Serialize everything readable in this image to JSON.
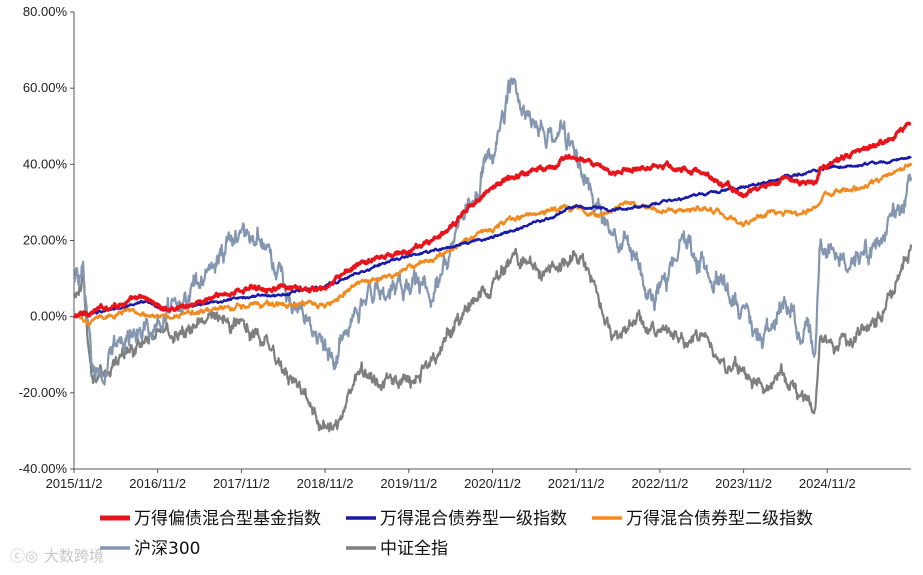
{
  "chart_data": {
    "type": "line",
    "title": "",
    "xlabel": "",
    "ylabel": "",
    "ylim": [
      -0.4,
      0.8
    ],
    "y_ticks": [
      "80.00%",
      "60.00%",
      "40.00%",
      "20.00%",
      "0.00%",
      "-20.00%",
      "-40.00%"
    ],
    "x_ticks": [
      "2015/11/2",
      "2016/11/2",
      "2017/11/2",
      "2018/11/2",
      "2019/11/2",
      "2020/11/2",
      "2021/11/2",
      "2022/11/2",
      "2023/11/2",
      "2024/11/2"
    ],
    "x_range": [
      2015.84,
      2025.84
    ],
    "grid": false,
    "legend_position": "bottom",
    "series": [
      {
        "name": "万得偏债混合型基金指数",
        "color": "#e8141b",
        "points": [
          [
            2015.84,
            0.0
          ],
          [
            2016.0,
            0.01
          ],
          [
            2016.3,
            0.03
          ],
          [
            2016.7,
            0.05
          ],
          [
            2016.9,
            0.02
          ],
          [
            2017.2,
            0.03
          ],
          [
            2017.5,
            0.05
          ],
          [
            2017.84,
            0.07
          ],
          [
            2018.1,
            0.08
          ],
          [
            2018.5,
            0.07
          ],
          [
            2018.84,
            0.07
          ],
          [
            2019.1,
            0.12
          ],
          [
            2019.4,
            0.15
          ],
          [
            2019.84,
            0.17
          ],
          [
            2020.1,
            0.2
          ],
          [
            2020.3,
            0.22
          ],
          [
            2020.6,
            0.3
          ],
          [
            2020.84,
            0.34
          ],
          [
            2021.1,
            0.37
          ],
          [
            2021.4,
            0.39
          ],
          [
            2021.84,
            0.42
          ],
          [
            2022.2,
            0.38
          ],
          [
            2022.5,
            0.39
          ],
          [
            2022.84,
            0.4
          ],
          [
            2023.3,
            0.38
          ],
          [
            2023.84,
            0.32
          ],
          [
            2024.3,
            0.36
          ],
          [
            2024.7,
            0.35
          ],
          [
            2024.75,
            0.39
          ],
          [
            2025.2,
            0.43
          ],
          [
            2025.5,
            0.46
          ],
          [
            2025.84,
            0.51
          ]
        ]
      },
      {
        "name": "万得混合债券型一级指数",
        "color": "#1a1aa8",
        "points": [
          [
            2015.84,
            0.0
          ],
          [
            2016.3,
            0.02
          ],
          [
            2016.7,
            0.04
          ],
          [
            2016.9,
            0.02
          ],
          [
            2017.3,
            0.03
          ],
          [
            2017.84,
            0.05
          ],
          [
            2018.3,
            0.06
          ],
          [
            2018.84,
            0.08
          ],
          [
            2019.3,
            0.12
          ],
          [
            2019.84,
            0.16
          ],
          [
            2020.3,
            0.18
          ],
          [
            2020.84,
            0.21
          ],
          [
            2021.3,
            0.24
          ],
          [
            2021.84,
            0.29
          ],
          [
            2022.3,
            0.28
          ],
          [
            2022.84,
            0.3
          ],
          [
            2023.3,
            0.32
          ],
          [
            2023.84,
            0.34
          ],
          [
            2024.4,
            0.37
          ],
          [
            2024.84,
            0.39
          ],
          [
            2025.3,
            0.4
          ],
          [
            2025.84,
            0.42
          ]
        ]
      },
      {
        "name": "万得混合债券型二级指数",
        "color": "#f28a1e",
        "points": [
          [
            2015.84,
            0.0
          ],
          [
            2016.0,
            -0.01
          ],
          [
            2016.5,
            0.02
          ],
          [
            2016.9,
            0.0
          ],
          [
            2017.3,
            0.01
          ],
          [
            2017.84,
            0.03
          ],
          [
            2018.2,
            0.03
          ],
          [
            2018.84,
            0.03
          ],
          [
            2019.2,
            0.08
          ],
          [
            2019.6,
            0.1
          ],
          [
            2019.84,
            0.13
          ],
          [
            2020.2,
            0.16
          ],
          [
            2020.5,
            0.2
          ],
          [
            2020.84,
            0.23
          ],
          [
            2021.3,
            0.27
          ],
          [
            2021.84,
            0.29
          ],
          [
            2022.1,
            0.26
          ],
          [
            2022.4,
            0.3
          ],
          [
            2022.84,
            0.28
          ],
          [
            2023.3,
            0.29
          ],
          [
            2023.84,
            0.25
          ],
          [
            2024.2,
            0.27
          ],
          [
            2024.7,
            0.28
          ],
          [
            2024.8,
            0.32
          ],
          [
            2025.3,
            0.34
          ],
          [
            2025.84,
            0.4
          ]
        ]
      },
      {
        "name": "沪深300",
        "color": "#8496b0",
        "points": [
          [
            2015.84,
            0.08
          ],
          [
            2015.95,
            0.13
          ],
          [
            2016.05,
            -0.16
          ],
          [
            2016.3,
            -0.09
          ],
          [
            2016.6,
            -0.04
          ],
          [
            2016.84,
            -0.02
          ],
          [
            2017.2,
            0.05
          ],
          [
            2017.5,
            0.14
          ],
          [
            2017.84,
            0.22
          ],
          [
            2018.1,
            0.2
          ],
          [
            2018.4,
            0.05
          ],
          [
            2018.84,
            -0.07
          ],
          [
            2019.0,
            -0.1
          ],
          [
            2019.2,
            0.05
          ],
          [
            2019.6,
            0.08
          ],
          [
            2019.84,
            0.09
          ],
          [
            2020.1,
            0.07
          ],
          [
            2020.4,
            0.2
          ],
          [
            2020.7,
            0.36
          ],
          [
            2020.84,
            0.42
          ],
          [
            2021.1,
            0.63
          ],
          [
            2021.3,
            0.5
          ],
          [
            2021.6,
            0.45
          ],
          [
            2021.84,
            0.42
          ],
          [
            2022.2,
            0.25
          ],
          [
            2022.5,
            0.18
          ],
          [
            2022.84,
            0.03
          ],
          [
            2023.1,
            0.22
          ],
          [
            2023.4,
            0.12
          ],
          [
            2023.84,
            0.0
          ],
          [
            2024.1,
            -0.06
          ],
          [
            2024.3,
            0.05
          ],
          [
            2024.7,
            -0.08
          ],
          [
            2024.75,
            0.2
          ],
          [
            2025.1,
            0.14
          ],
          [
            2025.5,
            0.2
          ],
          [
            2025.84,
            0.34
          ]
        ]
      },
      {
        "name": "中证全指",
        "color": "#7f7f7f",
        "points": [
          [
            2015.84,
            0.05
          ],
          [
            2015.95,
            0.1
          ],
          [
            2016.05,
            -0.18
          ],
          [
            2016.3,
            -0.12
          ],
          [
            2016.6,
            -0.08
          ],
          [
            2016.84,
            -0.05
          ],
          [
            2017.2,
            -0.04
          ],
          [
            2017.5,
            0.0
          ],
          [
            2017.84,
            -0.02
          ],
          [
            2018.1,
            -0.05
          ],
          [
            2018.4,
            -0.15
          ],
          [
            2018.84,
            -0.29
          ],
          [
            2019.0,
            -0.28
          ],
          [
            2019.2,
            -0.15
          ],
          [
            2019.6,
            -0.18
          ],
          [
            2019.84,
            -0.17
          ],
          [
            2020.1,
            -0.12
          ],
          [
            2020.4,
            -0.02
          ],
          [
            2020.7,
            0.06
          ],
          [
            2020.84,
            0.09
          ],
          [
            2021.1,
            0.16
          ],
          [
            2021.4,
            0.12
          ],
          [
            2021.84,
            0.16
          ],
          [
            2022.0,
            0.12
          ],
          [
            2022.3,
            -0.05
          ],
          [
            2022.6,
            0.0
          ],
          [
            2022.84,
            -0.05
          ],
          [
            2023.2,
            -0.05
          ],
          [
            2023.6,
            -0.1
          ],
          [
            2023.84,
            -0.16
          ],
          [
            2024.1,
            -0.2
          ],
          [
            2024.3,
            -0.15
          ],
          [
            2024.7,
            -0.24
          ],
          [
            2024.75,
            -0.05
          ],
          [
            2025.1,
            -0.08
          ],
          [
            2025.5,
            0.0
          ],
          [
            2025.84,
            0.18
          ]
        ]
      }
    ]
  },
  "watermark": "大数跨境"
}
